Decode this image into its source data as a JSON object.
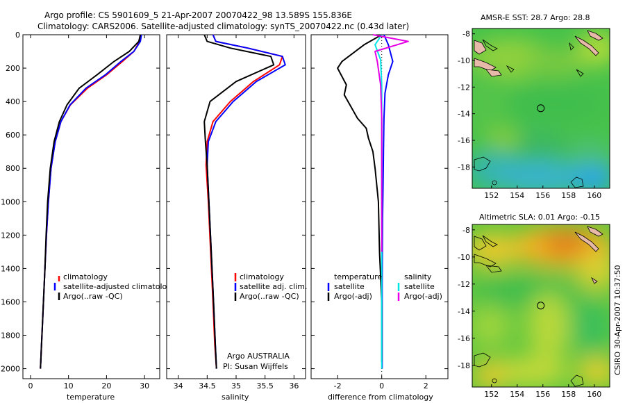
{
  "header": {
    "title_line1": "Argo profile: CS 5901609_5 21-Apr-2007 20070422_98 13.589S 155.836E",
    "title_line2": "Climatology: CARS2006. Satellite-adjusted climatology: synTS_20070422.nc (0.43d later)"
  },
  "footer": {
    "stamp": "CSIRO 30-Apr-2007 10:37:50",
    "argo_label": "Argo AUSTRALIA",
    "pi_label": "PI: Susan Wijffels"
  },
  "colors": {
    "climatology": "#ff0000",
    "satellite": "#0000ff",
    "argo": "#000000",
    "salinity_satellite": "#00e5e5",
    "salinity_argo": "#e600e6"
  },
  "chart_data": [
    {
      "type": "line",
      "id": "temperature",
      "xlabel": "temperature",
      "ylabel": "",
      "xlim": [
        -2,
        34
      ],
      "ylim": [
        2060,
        0
      ],
      "y_reversed": true,
      "xticks": [
        0,
        10,
        20,
        30
      ],
      "yticks": [
        0,
        200,
        400,
        600,
        800,
        1000,
        1200,
        1400,
        1600,
        1800,
        2000
      ],
      "legend": {
        "position": "lower-right",
        "entries": [
          "climatology",
          "satellite-adjusted climatology",
          "Argo(..raw -QC)"
        ]
      },
      "series": [
        {
          "name": "climatology",
          "color": "#ff0000",
          "x": [
            29.0,
            28.7,
            27.2,
            24.2,
            20.0,
            15.0,
            10.5,
            8.0,
            6.5,
            5.4,
            4.7,
            4.2,
            3.8,
            3.5,
            3.2,
            3.0,
            2.8,
            2.7,
            2.6
          ],
          "y": [
            0,
            40,
            100,
            160,
            240,
            320,
            420,
            520,
            640,
            800,
            1000,
            1200,
            1400,
            1550,
            1700,
            1800,
            1900,
            1960,
            2000
          ]
        },
        {
          "name": "satellite-adjusted climatology",
          "color": "#0000ff",
          "x": [
            29.2,
            28.9,
            27.2,
            23.8,
            19.7,
            14.6,
            10.4,
            8.0,
            6.5,
            5.4,
            4.7,
            4.2,
            3.8,
            3.5,
            3.2,
            3.0,
            2.8,
            2.7,
            2.6
          ],
          "y": [
            0,
            40,
            100,
            160,
            240,
            320,
            420,
            520,
            640,
            800,
            1000,
            1200,
            1400,
            1550,
            1700,
            1800,
            1900,
            1960,
            2000
          ]
        },
        {
          "name": "Argo(..raw -QC)",
          "color": "#000000",
          "x": [
            28.9,
            28.5,
            26.0,
            22.0,
            17.5,
            12.8,
            9.6,
            7.6,
            6.2,
            5.2,
            4.5,
            4.1,
            3.8,
            3.5,
            3.2,
            3.0,
            2.8,
            2.7,
            2.6
          ],
          "y": [
            0,
            40,
            100,
            160,
            240,
            320,
            420,
            520,
            640,
            800,
            1000,
            1200,
            1400,
            1550,
            1700,
            1800,
            1900,
            1960,
            2000
          ]
        }
      ]
    },
    {
      "type": "line",
      "id": "salinity",
      "xlabel": "salinity",
      "ylabel": "",
      "xlim": [
        33.8,
        36.2
      ],
      "ylim": [
        2060,
        0
      ],
      "y_reversed": true,
      "xticks": [
        34,
        34.5,
        35,
        35.5,
        36
      ],
      "legend": {
        "position": "lower-right",
        "entries": [
          "climatology",
          "satellite adj. clim.",
          "Argo(..raw -QC)"
        ]
      },
      "series": [
        {
          "name": "climatology",
          "color": "#ff0000",
          "x": [
            34.6,
            34.65,
            35.2,
            35.8,
            35.75,
            35.3,
            34.9,
            34.6,
            34.5,
            34.48,
            34.52,
            34.56,
            34.6,
            34.63,
            34.66
          ],
          "y": [
            0,
            40,
            80,
            130,
            180,
            280,
            400,
            520,
            640,
            780,
            1000,
            1300,
            1600,
            1850,
            2000
          ]
        },
        {
          "name": "satellite adj. clim.",
          "color": "#0000ff",
          "x": [
            34.6,
            34.65,
            35.2,
            35.8,
            35.85,
            35.35,
            34.95,
            34.65,
            34.52,
            34.5,
            34.53,
            34.57,
            34.61,
            34.64,
            34.66
          ],
          "y": [
            0,
            40,
            80,
            130,
            180,
            280,
            400,
            520,
            640,
            780,
            1000,
            1300,
            1600,
            1850,
            2000
          ]
        },
        {
          "name": "Argo(..raw -QC)",
          "color": "#000000",
          "x": [
            34.45,
            34.5,
            34.9,
            35.6,
            35.65,
            35.0,
            34.55,
            34.45,
            34.47,
            34.5,
            34.53,
            34.57,
            34.61,
            34.64,
            34.66
          ],
          "y": [
            0,
            40,
            80,
            130,
            180,
            280,
            400,
            520,
            640,
            780,
            1000,
            1300,
            1600,
            1850,
            2000
          ]
        }
      ]
    },
    {
      "type": "line",
      "id": "difference",
      "xlabel": "difference from climatology",
      "ylabel": "",
      "xlim": [
        -3.2,
        3.0
      ],
      "ylim": [
        2060,
        0
      ],
      "y_reversed": true,
      "xticks": [
        -2,
        0,
        2
      ],
      "legend": {
        "position": "lower-center",
        "headers": [
          "temperature",
          "salinity"
        ],
        "entries": [
          "satellite",
          "Argo(-adj)",
          "satellite",
          "Argo(-adj)"
        ]
      },
      "series": [
        {
          "name": "satellite",
          "group": "temperature",
          "color": "#0000ff",
          "x": [
            0.1,
            0.3,
            0.5,
            0.3,
            0.15,
            0.1,
            0.08,
            0.06,
            0.04,
            0.03,
            0.02,
            0.02,
            0.02
          ],
          "y": [
            0,
            60,
            160,
            240,
            350,
            500,
            700,
            900,
            1100,
            1300,
            1500,
            1800,
            2000
          ]
        },
        {
          "name": "Argo(-adj)",
          "group": "temperature",
          "color": "#000000",
          "x": [
            0.0,
            -0.8,
            -1.8,
            -2.0,
            -1.6,
            -1.7,
            -1.4,
            -1.1,
            -0.7,
            -0.6,
            -0.4,
            -0.3,
            -0.15,
            -0.1,
            0.0,
            0.0
          ],
          "y": [
            0,
            60,
            160,
            200,
            300,
            360,
            430,
            500,
            560,
            620,
            700,
            800,
            1000,
            1300,
            1600,
            1960
          ]
        },
        {
          "name": "satellite",
          "group": "salinity",
          "color": "#00e5e5",
          "x": [
            0.0,
            -0.3,
            -0.05,
            0.0,
            0.0,
            0.0,
            0.0,
            0.0,
            0.0
          ],
          "y": [
            0,
            60,
            150,
            300,
            600,
            900,
            1200,
            1600,
            2000
          ]
        },
        {
          "name": "Argo(-adj)",
          "group": "salinity",
          "color": "#e600e6",
          "x": [
            -0.4,
            1.2,
            -0.3,
            -0.2,
            -0.05,
            0.0,
            0.0,
            0.0
          ],
          "y": [
            0,
            40,
            100,
            160,
            300,
            500,
            900,
            1300
          ]
        }
      ]
    },
    {
      "type": "heatmap",
      "id": "sst_map",
      "title": "AMSR-E SST: 28.7  Argo: 28.8",
      "xlim": [
        150.5,
        161.2
      ],
      "ylim": [
        -19.6,
        -7.6
      ],
      "xticks": [
        152,
        154,
        156,
        158,
        160
      ],
      "yticks": [
        -8,
        -10,
        -12,
        -14,
        -16,
        -18
      ],
      "argo_position": [
        155.836,
        -13.589
      ]
    },
    {
      "type": "heatmap",
      "id": "sla_map",
      "title": "Altimetric SLA: 0.01  Argo: -0.15",
      "xlim": [
        150.5,
        161.2
      ],
      "ylim": [
        -19.6,
        -7.6
      ],
      "xticks": [
        152,
        154,
        156,
        158,
        160
      ],
      "yticks": [
        -8,
        -10,
        -12,
        -14,
        -16,
        -18
      ],
      "argo_position": [
        155.836,
        -13.589
      ]
    }
  ]
}
